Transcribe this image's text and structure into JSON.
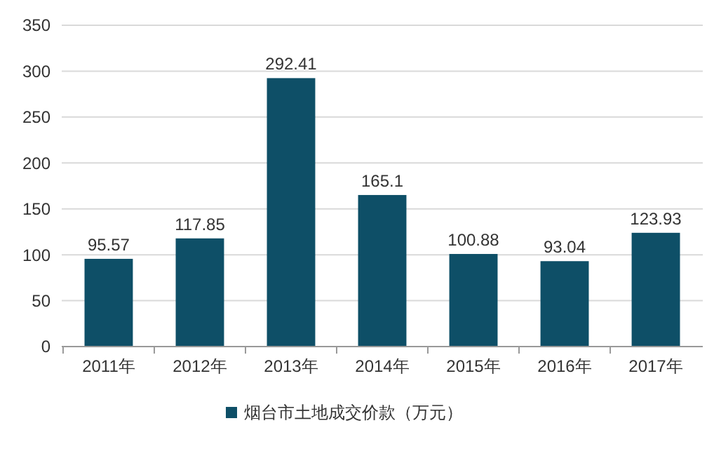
{
  "chart_data": {
    "type": "bar",
    "categories": [
      "2011年",
      "2012年",
      "2013年",
      "2014年",
      "2015年",
      "2016年",
      "2017年"
    ],
    "series": [
      {
        "name": "烟台市土地成交价款（万元）",
        "color": "#0e4f67",
        "values": [
          95.57,
          117.85,
          292.41,
          165.1,
          100.88,
          93.04,
          123.93
        ]
      }
    ],
    "ylim": [
      0,
      350
    ],
    "yticks": [
      0,
      50,
      100,
      150,
      200,
      250,
      300,
      350
    ],
    "grid": "y",
    "data_labels": true,
    "legend": "bottom"
  }
}
